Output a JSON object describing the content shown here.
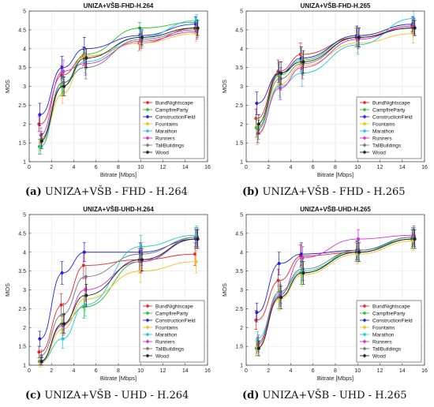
{
  "chart_data": [
    {
      "type": "line",
      "title": "UNIZA+VŠB-FHD-H.264",
      "caption_tag": "(a)",
      "caption_text": "UNIZA+VŠB - FHD - H.264",
      "xlabel": "Bitrate [Mbps]",
      "ylabel": "MOS",
      "xlim": [
        0,
        16
      ],
      "ylim": [
        1,
        5
      ],
      "xticks": [
        0,
        2,
        4,
        6,
        8,
        10,
        12,
        14,
        16
      ],
      "yticks": [
        1,
        1.5,
        2,
        2.5,
        3,
        3.5,
        4,
        4.5,
        5
      ],
      "grid": true,
      "legend_position": "bottom-right",
      "x": [
        1,
        3,
        5,
        10,
        15
      ],
      "series": [
        {
          "name": "BundNightscape",
          "color": "#e8262a",
          "values": [
            2.0,
            3.3,
            3.8,
            4.15,
            4.55
          ],
          "err": [
            0.2,
            0.25,
            0.25,
            0.2,
            0.15
          ]
        },
        {
          "name": "CampfireParty",
          "color": "#2bbf2b",
          "values": [
            1.4,
            3.0,
            3.85,
            4.55,
            4.7
          ],
          "err": [
            0.2,
            0.25,
            0.2,
            0.15,
            0.15
          ]
        },
        {
          "name": "ConstructionField",
          "color": "#2222dd",
          "values": [
            2.25,
            3.5,
            4.0,
            4.35,
            4.65
          ],
          "err": [
            0.3,
            0.3,
            0.3,
            0.2,
            0.2
          ]
        },
        {
          "name": "Fountains",
          "color": "#f0c020",
          "values": [
            1.5,
            2.8,
            3.8,
            4.15,
            4.4
          ],
          "err": [
            0.2,
            0.25,
            0.2,
            0.2,
            0.2
          ]
        },
        {
          "name": "Marathon",
          "color": "#22c8d8",
          "values": [
            1.4,
            3.1,
            3.65,
            4.3,
            4.75
          ],
          "err": [
            0.2,
            0.3,
            0.3,
            0.2,
            0.15
          ]
        },
        {
          "name": "Runners",
          "color": "#d030d0",
          "values": [
            1.7,
            3.4,
            3.6,
            4.2,
            4.45
          ],
          "err": [
            0.2,
            0.3,
            0.3,
            0.2,
            0.2
          ]
        },
        {
          "name": "TallBuildings",
          "color": "#777777",
          "values": [
            1.6,
            3.1,
            3.5,
            4.25,
            4.5
          ],
          "err": [
            0.2,
            0.25,
            0.3,
            0.2,
            0.2
          ]
        },
        {
          "name": "Wood",
          "color": "#222222",
          "values": [
            1.55,
            3.0,
            3.75,
            4.3,
            4.55
          ],
          "err": [
            0.2,
            0.25,
            0.25,
            0.2,
            0.2
          ]
        }
      ]
    },
    {
      "type": "line",
      "title": "UNIZA+VŠB-FHD-H.265",
      "caption_tag": "(b)",
      "caption_text": "UNIZA+VŠB - FHD - H.265",
      "xlabel": "Bitrate [Mbps]",
      "ylabel": "MOS",
      "xlim": [
        0,
        16
      ],
      "ylim": [
        1,
        5
      ],
      "xticks": [
        0,
        2,
        4,
        6,
        8,
        10,
        12,
        14,
        16
      ],
      "yticks": [
        1,
        1.5,
        2,
        2.5,
        3,
        3.5,
        4,
        4.5,
        5
      ],
      "grid": true,
      "legend_position": "bottom-right",
      "x": [
        1,
        3,
        5,
        10,
        15
      ],
      "series": [
        {
          "name": "BundNightscape",
          "color": "#e8262a",
          "values": [
            2.15,
            3.4,
            3.85,
            4.3,
            4.6
          ],
          "err": [
            0.25,
            0.3,
            0.3,
            0.25,
            0.2
          ]
        },
        {
          "name": "CampfireParty",
          "color": "#2bbf2b",
          "values": [
            1.9,
            3.3,
            3.7,
            4.35,
            4.65
          ],
          "err": [
            0.25,
            0.3,
            0.3,
            0.25,
            0.2
          ]
        },
        {
          "name": "ConstructionField",
          "color": "#2222dd",
          "values": [
            2.55,
            3.35,
            3.75,
            4.35,
            4.65
          ],
          "err": [
            0.3,
            0.3,
            0.3,
            0.25,
            0.2
          ]
        },
        {
          "name": "Fountains",
          "color": "#f0c020",
          "values": [
            1.7,
            3.05,
            3.55,
            4.15,
            4.4
          ],
          "err": [
            0.25,
            0.3,
            0.3,
            0.25,
            0.25
          ]
        },
        {
          "name": "Marathon",
          "color": "#22c8d8",
          "values": [
            1.75,
            3.0,
            3.35,
            4.1,
            4.8
          ],
          "err": [
            0.25,
            0.3,
            0.35,
            0.25,
            0.2
          ]
        },
        {
          "name": "Runners",
          "color": "#d030d0",
          "values": [
            1.75,
            2.95,
            3.5,
            4.25,
            4.6
          ],
          "err": [
            0.25,
            0.3,
            0.3,
            0.25,
            0.2
          ]
        },
        {
          "name": "TallBuildings",
          "color": "#777777",
          "values": [
            1.85,
            3.2,
            3.6,
            4.3,
            4.55
          ],
          "err": [
            0.25,
            0.3,
            0.3,
            0.25,
            0.2
          ]
        },
        {
          "name": "Wood",
          "color": "#222222",
          "values": [
            2.0,
            3.35,
            3.65,
            4.3,
            4.55
          ],
          "err": [
            0.25,
            0.3,
            0.3,
            0.25,
            0.2
          ]
        }
      ]
    },
    {
      "type": "line",
      "title": "UNIZA+VŠB-UHD-H.264",
      "caption_tag": "(c)",
      "caption_text": "UNIZA+VŠB - UHD - H.264",
      "xlabel": "Bitrate [Mbps]",
      "ylabel": "MOS",
      "xlim": [
        0,
        16
      ],
      "ylim": [
        1,
        5
      ],
      "xticks": [
        0,
        2,
        4,
        6,
        8,
        10,
        12,
        14,
        16
      ],
      "yticks": [
        1,
        1.5,
        2,
        2.5,
        3,
        3.5,
        4,
        4.5,
        5
      ],
      "grid": true,
      "legend_position": "bottom-right",
      "x": [
        1,
        3,
        5,
        10,
        15
      ],
      "series": [
        {
          "name": "BundNightscape",
          "color": "#e8262a",
          "values": [
            1.35,
            2.6,
            3.65,
            3.8,
            3.95
          ],
          "err": [
            0.15,
            0.3,
            0.35,
            0.3,
            0.3
          ]
        },
        {
          "name": "CampfireParty",
          "color": "#2bbf2b",
          "values": [
            1.1,
            2.1,
            2.55,
            3.75,
            4.4
          ],
          "err": [
            0.1,
            0.25,
            0.3,
            0.3,
            0.25
          ]
        },
        {
          "name": "ConstructionField",
          "color": "#2222dd",
          "values": [
            1.7,
            3.45,
            4.0,
            4.0,
            4.35
          ],
          "err": [
            0.2,
            0.3,
            0.25,
            0.25,
            0.25
          ]
        },
        {
          "name": "Fountains",
          "color": "#f0c020",
          "values": [
            1.05,
            1.95,
            2.75,
            3.5,
            3.75
          ],
          "err": [
            0.1,
            0.25,
            0.3,
            0.3,
            0.3
          ]
        },
        {
          "name": "Marathon",
          "color": "#22c8d8",
          "values": [
            1.1,
            1.7,
            2.6,
            4.15,
            4.45
          ],
          "err": [
            0.1,
            0.25,
            0.3,
            0.3,
            0.25
          ]
        },
        {
          "name": "Runners",
          "color": "#d030d0",
          "values": [
            1.1,
            2.05,
            3.0,
            3.75,
            4.35
          ],
          "err": [
            0.1,
            0.25,
            0.3,
            0.3,
            0.25
          ]
        },
        {
          "name": "TallBuildings",
          "color": "#777777",
          "values": [
            1.25,
            2.35,
            3.35,
            3.95,
            4.4
          ],
          "err": [
            0.15,
            0.3,
            0.3,
            0.3,
            0.25
          ]
        },
        {
          "name": "Wood",
          "color": "#222222",
          "values": [
            1.1,
            2.1,
            2.85,
            3.8,
            4.35
          ],
          "err": [
            0.1,
            0.25,
            0.3,
            0.3,
            0.25
          ]
        }
      ]
    },
    {
      "type": "line",
      "title": "UNIZA+VŠB-UHD-H.265",
      "caption_tag": "(d)",
      "caption_text": "UNIZA+VŠB - UHD - H.265",
      "xlabel": "Bitrate [Mbps]",
      "ylabel": "MOS",
      "xlim": [
        0,
        16
      ],
      "ylim": [
        1,
        5
      ],
      "xticks": [
        0,
        2,
        4,
        6,
        8,
        10,
        12,
        14,
        16
      ],
      "yticks": [
        1,
        1.5,
        2,
        2.5,
        3,
        3.5,
        4,
        4.5,
        5
      ],
      "grid": true,
      "legend_position": "bottom-right",
      "x": [
        1,
        3,
        5,
        10,
        15
      ],
      "series": [
        {
          "name": "BundNightscape",
          "color": "#e8262a",
          "values": [
            2.2,
            3.25,
            3.9,
            4.0,
            4.35
          ],
          "err": [
            0.25,
            0.3,
            0.3,
            0.25,
            0.25
          ]
        },
        {
          "name": "CampfireParty",
          "color": "#2bbf2b",
          "values": [
            1.45,
            2.8,
            3.45,
            4.05,
            4.35
          ],
          "err": [
            0.2,
            0.3,
            0.3,
            0.25,
            0.25
          ]
        },
        {
          "name": "ConstructionField",
          "color": "#2222dd",
          "values": [
            2.4,
            3.7,
            3.95,
            4.05,
            4.4
          ],
          "err": [
            0.25,
            0.3,
            0.3,
            0.25,
            0.25
          ]
        },
        {
          "name": "Fountains",
          "color": "#f0c020",
          "values": [
            1.5,
            2.75,
            3.4,
            3.95,
            4.3
          ],
          "err": [
            0.2,
            0.3,
            0.3,
            0.25,
            0.25
          ]
        },
        {
          "name": "Marathon",
          "color": "#22c8d8",
          "values": [
            1.7,
            2.9,
            3.5,
            4.0,
            4.4
          ],
          "err": [
            0.2,
            0.3,
            0.3,
            0.25,
            0.25
          ]
        },
        {
          "name": "Runners",
          "color": "#d030d0",
          "values": [
            1.55,
            2.85,
            3.85,
            4.35,
            4.45
          ],
          "err": [
            0.2,
            0.3,
            0.3,
            0.25,
            0.25
          ]
        },
        {
          "name": "TallBuildings",
          "color": "#777777",
          "values": [
            1.6,
            2.95,
            3.55,
            4.05,
            4.4
          ],
          "err": [
            0.2,
            0.3,
            0.3,
            0.25,
            0.25
          ]
        },
        {
          "name": "Wood",
          "color": "#222222",
          "values": [
            1.45,
            2.8,
            3.45,
            4.0,
            4.35
          ],
          "err": [
            0.2,
            0.3,
            0.3,
            0.25,
            0.25
          ]
        }
      ]
    }
  ]
}
